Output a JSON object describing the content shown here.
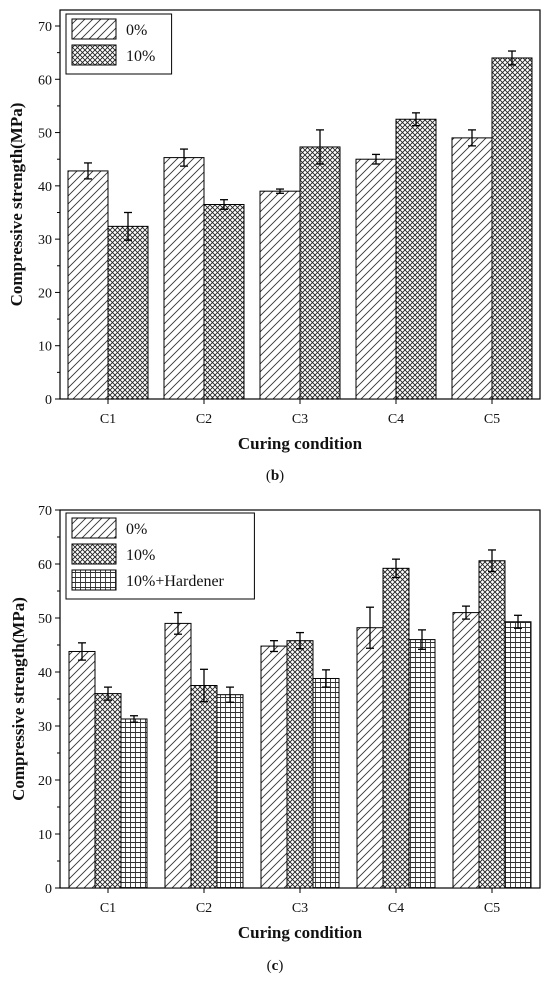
{
  "chart_data": [
    {
      "type": "bar",
      "panel_label": "b",
      "categories": [
        "C1",
        "C2",
        "C3",
        "C4",
        "C5"
      ],
      "series": [
        {
          "name": "0%",
          "pattern": "diagonal-hatch",
          "values": [
            42.8,
            45.3,
            39.0,
            45.0,
            49.0
          ],
          "errors": [
            1.5,
            1.6,
            0.4,
            0.9,
            1.5
          ]
        },
        {
          "name": "10%",
          "pattern": "crosshatch",
          "values": [
            32.4,
            36.5,
            47.3,
            52.5,
            64.0
          ],
          "errors": [
            2.6,
            0.9,
            3.2,
            1.2,
            1.3
          ]
        }
      ],
      "xlabel": "Curing condition",
      "ylabel": "Compressive strength(MPa)",
      "ylim": [
        0,
        73
      ],
      "yticks": [
        0,
        10,
        20,
        30,
        40,
        50,
        60,
        70
      ],
      "legend": "top-left",
      "grid": false
    },
    {
      "type": "bar",
      "panel_label": "c",
      "categories": [
        "C1",
        "C2",
        "C3",
        "C4",
        "C5"
      ],
      "series": [
        {
          "name": "0%",
          "pattern": "diagonal-hatch",
          "values": [
            43.8,
            49.0,
            44.8,
            48.2,
            51.0
          ],
          "errors": [
            1.6,
            2.0,
            1.0,
            3.8,
            1.2
          ]
        },
        {
          "name": "10%",
          "pattern": "crosshatch",
          "values": [
            36.0,
            37.5,
            45.8,
            59.2,
            60.6
          ],
          "errors": [
            1.2,
            3.0,
            1.5,
            1.7,
            2.0
          ]
        },
        {
          "name": "10%+Hardener",
          "pattern": "grid",
          "values": [
            31.3,
            35.8,
            38.8,
            46.0,
            49.3
          ],
          "errors": [
            0.6,
            1.4,
            1.6,
            1.8,
            1.2
          ]
        }
      ],
      "xlabel": "Curing condition",
      "ylabel": "Compressive strength(MPa)",
      "ylim": [
        0,
        70
      ],
      "yticks": [
        0,
        10,
        20,
        30,
        40,
        50,
        60,
        70
      ],
      "legend": "top-left",
      "grid": false
    }
  ]
}
